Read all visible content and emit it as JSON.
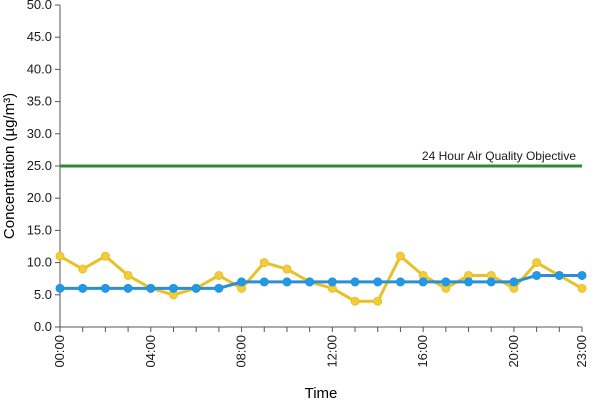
{
  "chart_data": {
    "type": "line",
    "xlabel": "Time",
    "ylabel": "Concentration (µg/m³)",
    "ylim": [
      0,
      50
    ],
    "y_ticks": [
      "0.0",
      "5.0",
      "10.0",
      "15.0",
      "20.0",
      "25.0",
      "30.0",
      "35.0",
      "40.0",
      "45.0",
      "50.0"
    ],
    "x_ticks": [
      "00:00",
      "04:00",
      "08:00",
      "12:00",
      "16:00",
      "20:00",
      "23:00"
    ],
    "x": [
      "00:00",
      "01:00",
      "02:00",
      "03:00",
      "04:00",
      "05:00",
      "06:00",
      "07:00",
      "08:00",
      "09:00",
      "10:00",
      "11:00",
      "12:00",
      "13:00",
      "14:00",
      "15:00",
      "16:00",
      "17:00",
      "18:00",
      "19:00",
      "20:00",
      "21:00",
      "22:00",
      "23:00"
    ],
    "series": [
      {
        "color": "#e8c028",
        "marker_fill": "#f2cc3c",
        "values": [
          11,
          9,
          11,
          8,
          6,
          5,
          6,
          8,
          6,
          10,
          9,
          7,
          6,
          4,
          4,
          11,
          8,
          6,
          8,
          8,
          6,
          10,
          8,
          6
        ]
      },
      {
        "color": "#2a8fd4",
        "marker_fill": "#1e9be8",
        "values": [
          6,
          6,
          6,
          6,
          6,
          6,
          6,
          6,
          7,
          7,
          7,
          7,
          7,
          7,
          7,
          7,
          7,
          7,
          7,
          7,
          7,
          8,
          8,
          8
        ]
      }
    ],
    "reference_line": {
      "label": "24 Hour Air Quality Objective",
      "value": 25,
      "color": "#2e8b2e"
    },
    "grid": false,
    "legend": "none"
  }
}
